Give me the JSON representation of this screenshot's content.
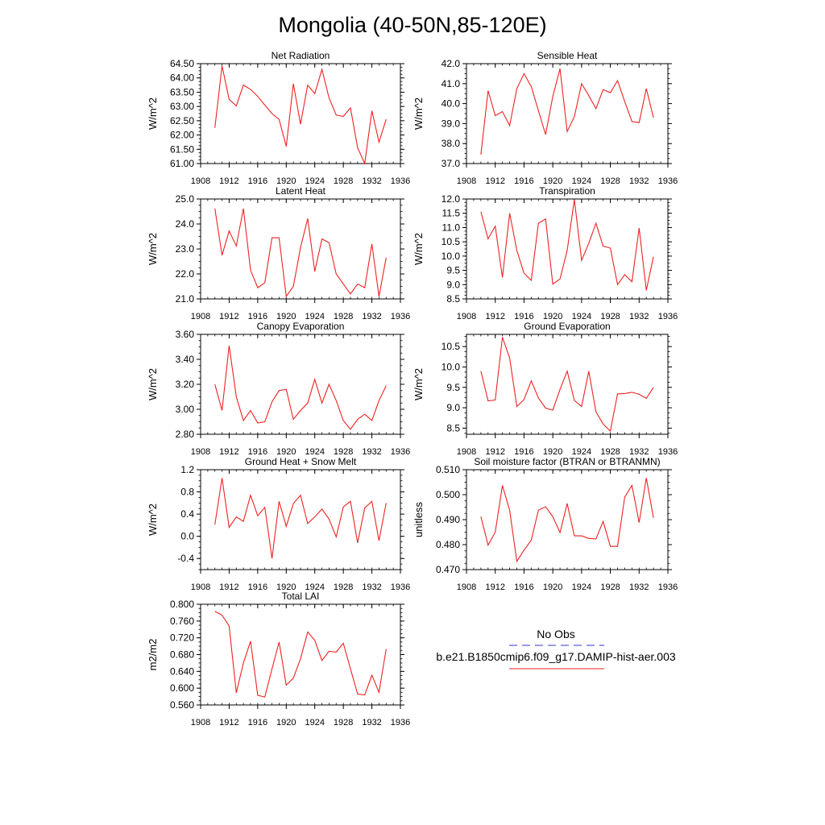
{
  "page_title": "Mongolia (40-50N,85-120E)",
  "legend": {
    "obs_label": "No Obs",
    "obs_color": "#3333cc",
    "model_label": "b.e21.B1850cmip6.f09_g17.DAMIP-hist-aer.003",
    "model_color": "#ee2222"
  },
  "chart_data": [
    {
      "type": "line",
      "title": "Net Radiation",
      "ylabel": "W/m^2",
      "xlim": [
        1908,
        1936
      ],
      "xticks": [
        1908,
        1912,
        1916,
        1920,
        1924,
        1928,
        1932,
        1936
      ],
      "ylim": [
        61.0,
        64.5
      ],
      "yticks": [
        "61.00",
        "61.50",
        "62.00",
        "62.50",
        "63.00",
        "63.50",
        "64.00",
        "64.50"
      ],
      "x": [
        1910,
        1911,
        1912,
        1913,
        1914,
        1915,
        1916,
        1917,
        1918,
        1919,
        1920,
        1921,
        1922,
        1923,
        1924,
        1925,
        1926,
        1927,
        1928,
        1929,
        1930,
        1931,
        1932,
        1933,
        1934
      ],
      "series": [
        {
          "values": [
            62.25,
            64.42,
            63.25,
            63.02,
            63.75,
            63.6,
            63.35,
            63.05,
            62.75,
            62.55,
            61.6,
            63.8,
            62.38,
            63.75,
            63.45,
            64.3,
            63.3,
            62.7,
            62.65,
            62.95,
            61.55,
            61.0,
            62.85,
            61.75,
            62.55
          ]
        }
      ]
    },
    {
      "type": "line",
      "title": "Sensible Heat",
      "ylabel": "W/m^2",
      "xlim": [
        1908,
        1936
      ],
      "xticks": [
        1908,
        1912,
        1916,
        1920,
        1924,
        1928,
        1932,
        1936
      ],
      "ylim": [
        37.0,
        42.0
      ],
      "yticks": [
        "37.0",
        "38.0",
        "39.0",
        "40.0",
        "41.0",
        "42.0"
      ],
      "x": [
        1910,
        1911,
        1912,
        1913,
        1914,
        1915,
        1916,
        1917,
        1918,
        1919,
        1920,
        1921,
        1922,
        1923,
        1924,
        1925,
        1926,
        1927,
        1928,
        1929,
        1930,
        1931,
        1932,
        1933,
        1934
      ],
      "series": [
        {
          "values": [
            37.45,
            40.65,
            39.4,
            39.6,
            38.9,
            40.75,
            41.5,
            40.85,
            39.65,
            38.45,
            40.35,
            41.75,
            38.6,
            39.35,
            41.0,
            40.4,
            39.75,
            40.7,
            40.55,
            41.15,
            40.1,
            39.1,
            39.05,
            40.75,
            39.3
          ]
        }
      ]
    },
    {
      "type": "line",
      "title": "Latent Heat",
      "ylabel": "W/m^2",
      "xlim": [
        1908,
        1936
      ],
      "xticks": [
        1908,
        1912,
        1916,
        1920,
        1924,
        1928,
        1932,
        1936
      ],
      "ylim": [
        21.0,
        25.0
      ],
      "yticks": [
        "21.0",
        "22.0",
        "23.0",
        "24.0",
        "25.0"
      ],
      "x": [
        1910,
        1911,
        1912,
        1913,
        1914,
        1915,
        1916,
        1917,
        1918,
        1919,
        1920,
        1921,
        1922,
        1923,
        1924,
        1925,
        1926,
        1927,
        1928,
        1929,
        1930,
        1931,
        1932,
        1933,
        1934
      ],
      "series": [
        {
          "values": [
            24.62,
            22.75,
            23.72,
            23.12,
            24.62,
            22.15,
            21.45,
            21.65,
            23.45,
            23.45,
            21.1,
            21.5,
            23.05,
            24.22,
            22.1,
            23.4,
            23.25,
            22.0,
            21.6,
            21.2,
            21.6,
            21.45,
            23.2,
            21.1,
            22.65
          ]
        }
      ]
    },
    {
      "type": "line",
      "title": "Transpiration",
      "ylabel": "W/m^2",
      "xlim": [
        1908,
        1936
      ],
      "xticks": [
        1908,
        1912,
        1916,
        1920,
        1924,
        1928,
        1932,
        1936
      ],
      "ylim": [
        8.5,
        12.0
      ],
      "yticks": [
        "8.5",
        "9.0",
        "9.5",
        "10.0",
        "10.5",
        "11.0",
        "11.5",
        "12.0"
      ],
      "x": [
        1910,
        1911,
        1912,
        1913,
        1914,
        1915,
        1916,
        1917,
        1918,
        1919,
        1920,
        1921,
        1922,
        1923,
        1924,
        1925,
        1926,
        1927,
        1928,
        1929,
        1930,
        1931,
        1932,
        1933,
        1934
      ],
      "series": [
        {
          "values": [
            11.55,
            10.6,
            11.05,
            9.25,
            11.5,
            10.2,
            9.4,
            9.15,
            11.15,
            11.3,
            9.02,
            9.2,
            10.2,
            11.98,
            9.85,
            10.45,
            11.15,
            10.35,
            10.28,
            9.0,
            9.35,
            9.1,
            10.98,
            8.8,
            9.98
          ]
        }
      ]
    },
    {
      "type": "line",
      "title": "Canopy Evaporation",
      "ylabel": "W/m^2",
      "xlim": [
        1908,
        1936
      ],
      "xticks": [
        1908,
        1912,
        1916,
        1920,
        1924,
        1928,
        1932,
        1936
      ],
      "ylim": [
        2.8,
        3.6
      ],
      "yticks": [
        "2.80",
        "3.00",
        "3.20",
        "3.40",
        "3.60"
      ],
      "x": [
        1910,
        1911,
        1912,
        1913,
        1914,
        1915,
        1916,
        1917,
        1918,
        1919,
        1920,
        1921,
        1922,
        1923,
        1924,
        1925,
        1926,
        1927,
        1928,
        1929,
        1930,
        1931,
        1932,
        1933,
        1934
      ],
      "series": [
        {
          "values": [
            3.2,
            2.99,
            3.51,
            3.1,
            2.91,
            2.99,
            2.89,
            2.9,
            3.06,
            3.15,
            3.16,
            2.92,
            2.99,
            3.05,
            3.24,
            3.05,
            3.2,
            3.07,
            2.91,
            2.84,
            2.92,
            2.96,
            2.91,
            3.07,
            3.19
          ]
        }
      ]
    },
    {
      "type": "line",
      "title": "Ground Evaporation",
      "ylabel": "W/m^2",
      "xlim": [
        1908,
        1936
      ],
      "xticks": [
        1908,
        1912,
        1916,
        1920,
        1924,
        1928,
        1932,
        1936
      ],
      "ylim": [
        8.35,
        10.8
      ],
      "yticks": [
        "8.5",
        "9.0",
        "9.5",
        "10.0",
        "10.5"
      ],
      "x": [
        1910,
        1911,
        1912,
        1913,
        1914,
        1915,
        1916,
        1917,
        1918,
        1919,
        1920,
        1921,
        1922,
        1923,
        1924,
        1925,
        1926,
        1927,
        1928,
        1929,
        1930,
        1931,
        1932,
        1933,
        1934
      ],
      "series": [
        {
          "values": [
            9.9,
            9.17,
            9.19,
            10.73,
            10.22,
            9.03,
            9.2,
            9.66,
            9.24,
            8.99,
            8.94,
            9.45,
            9.9,
            9.18,
            9.03,
            9.9,
            8.9,
            8.6,
            8.43,
            9.34,
            9.35,
            9.38,
            9.33,
            9.23,
            9.5
          ]
        }
      ]
    },
    {
      "type": "line",
      "title": "Ground Heat + Snow Melt",
      "ylabel": "W/m^2",
      "xlim": [
        1908,
        1936
      ],
      "xticks": [
        1908,
        1912,
        1916,
        1920,
        1924,
        1928,
        1932,
        1936
      ],
      "ylim": [
        -0.6,
        1.2
      ],
      "yticks": [
        "-0.4",
        "0.0",
        "0.4",
        "0.8",
        "1.2"
      ],
      "x": [
        1910,
        1911,
        1912,
        1913,
        1914,
        1915,
        1916,
        1917,
        1918,
        1919,
        1920,
        1921,
        1922,
        1923,
        1924,
        1925,
        1926,
        1927,
        1928,
        1929,
        1930,
        1931,
        1932,
        1933,
        1934
      ],
      "series": [
        {
          "values": [
            0.21,
            1.05,
            0.16,
            0.35,
            0.27,
            0.74,
            0.37,
            0.52,
            -0.4,
            0.63,
            0.18,
            0.59,
            0.74,
            0.23,
            0.35,
            0.49,
            0.31,
            -0.01,
            0.53,
            0.63,
            -0.12,
            0.51,
            0.63,
            -0.08,
            0.6
          ]
        }
      ]
    },
    {
      "type": "line",
      "title": "Soil moisture factor (BTRAN or BTRANMN)",
      "ylabel": "unitless",
      "xlim": [
        1908,
        1936
      ],
      "xticks": [
        1908,
        1912,
        1916,
        1920,
        1924,
        1928,
        1932,
        1936
      ],
      "ylim": [
        0.47,
        0.51
      ],
      "yticks": [
        "0.470",
        "0.480",
        "0.490",
        "0.500",
        "0.510"
      ],
      "x": [
        1910,
        1911,
        1912,
        1913,
        1914,
        1915,
        1916,
        1917,
        1918,
        1919,
        1920,
        1921,
        1922,
        1923,
        1924,
        1925,
        1926,
        1927,
        1928,
        1929,
        1930,
        1931,
        1932,
        1933,
        1934
      ],
      "series": [
        {
          "values": [
            0.4912,
            0.4798,
            0.485,
            0.5037,
            0.4937,
            0.4733,
            0.4778,
            0.4818,
            0.4938,
            0.4952,
            0.4912,
            0.4848,
            0.4965,
            0.4835,
            0.4835,
            0.4825,
            0.4823,
            0.4893,
            0.4793,
            0.4793,
            0.499,
            0.5037,
            0.4888,
            0.5067,
            0.4907
          ]
        }
      ]
    },
    {
      "type": "line",
      "title": "Total LAI",
      "ylabel": "m2/m2",
      "xlim": [
        1908,
        1936
      ],
      "xticks": [
        1908,
        1912,
        1916,
        1920,
        1924,
        1928,
        1932,
        1936
      ],
      "ylim": [
        0.56,
        0.8
      ],
      "yticks": [
        "0.560",
        "0.600",
        "0.640",
        "0.680",
        "0.720",
        "0.760",
        "0.800"
      ],
      "x": [
        1910,
        1911,
        1912,
        1913,
        1914,
        1915,
        1916,
        1917,
        1918,
        1919,
        1920,
        1921,
        1922,
        1923,
        1924,
        1925,
        1926,
        1927,
        1928,
        1929,
        1930,
        1931,
        1932,
        1933,
        1934
      ],
      "series": [
        {
          "values": [
            0.783,
            0.774,
            0.748,
            0.589,
            0.66,
            0.712,
            0.583,
            0.579,
            0.646,
            0.71,
            0.607,
            0.624,
            0.67,
            0.734,
            0.714,
            0.666,
            0.688,
            0.686,
            0.707,
            0.646,
            0.586,
            0.584,
            0.631,
            0.59,
            0.693
          ]
        }
      ]
    }
  ]
}
